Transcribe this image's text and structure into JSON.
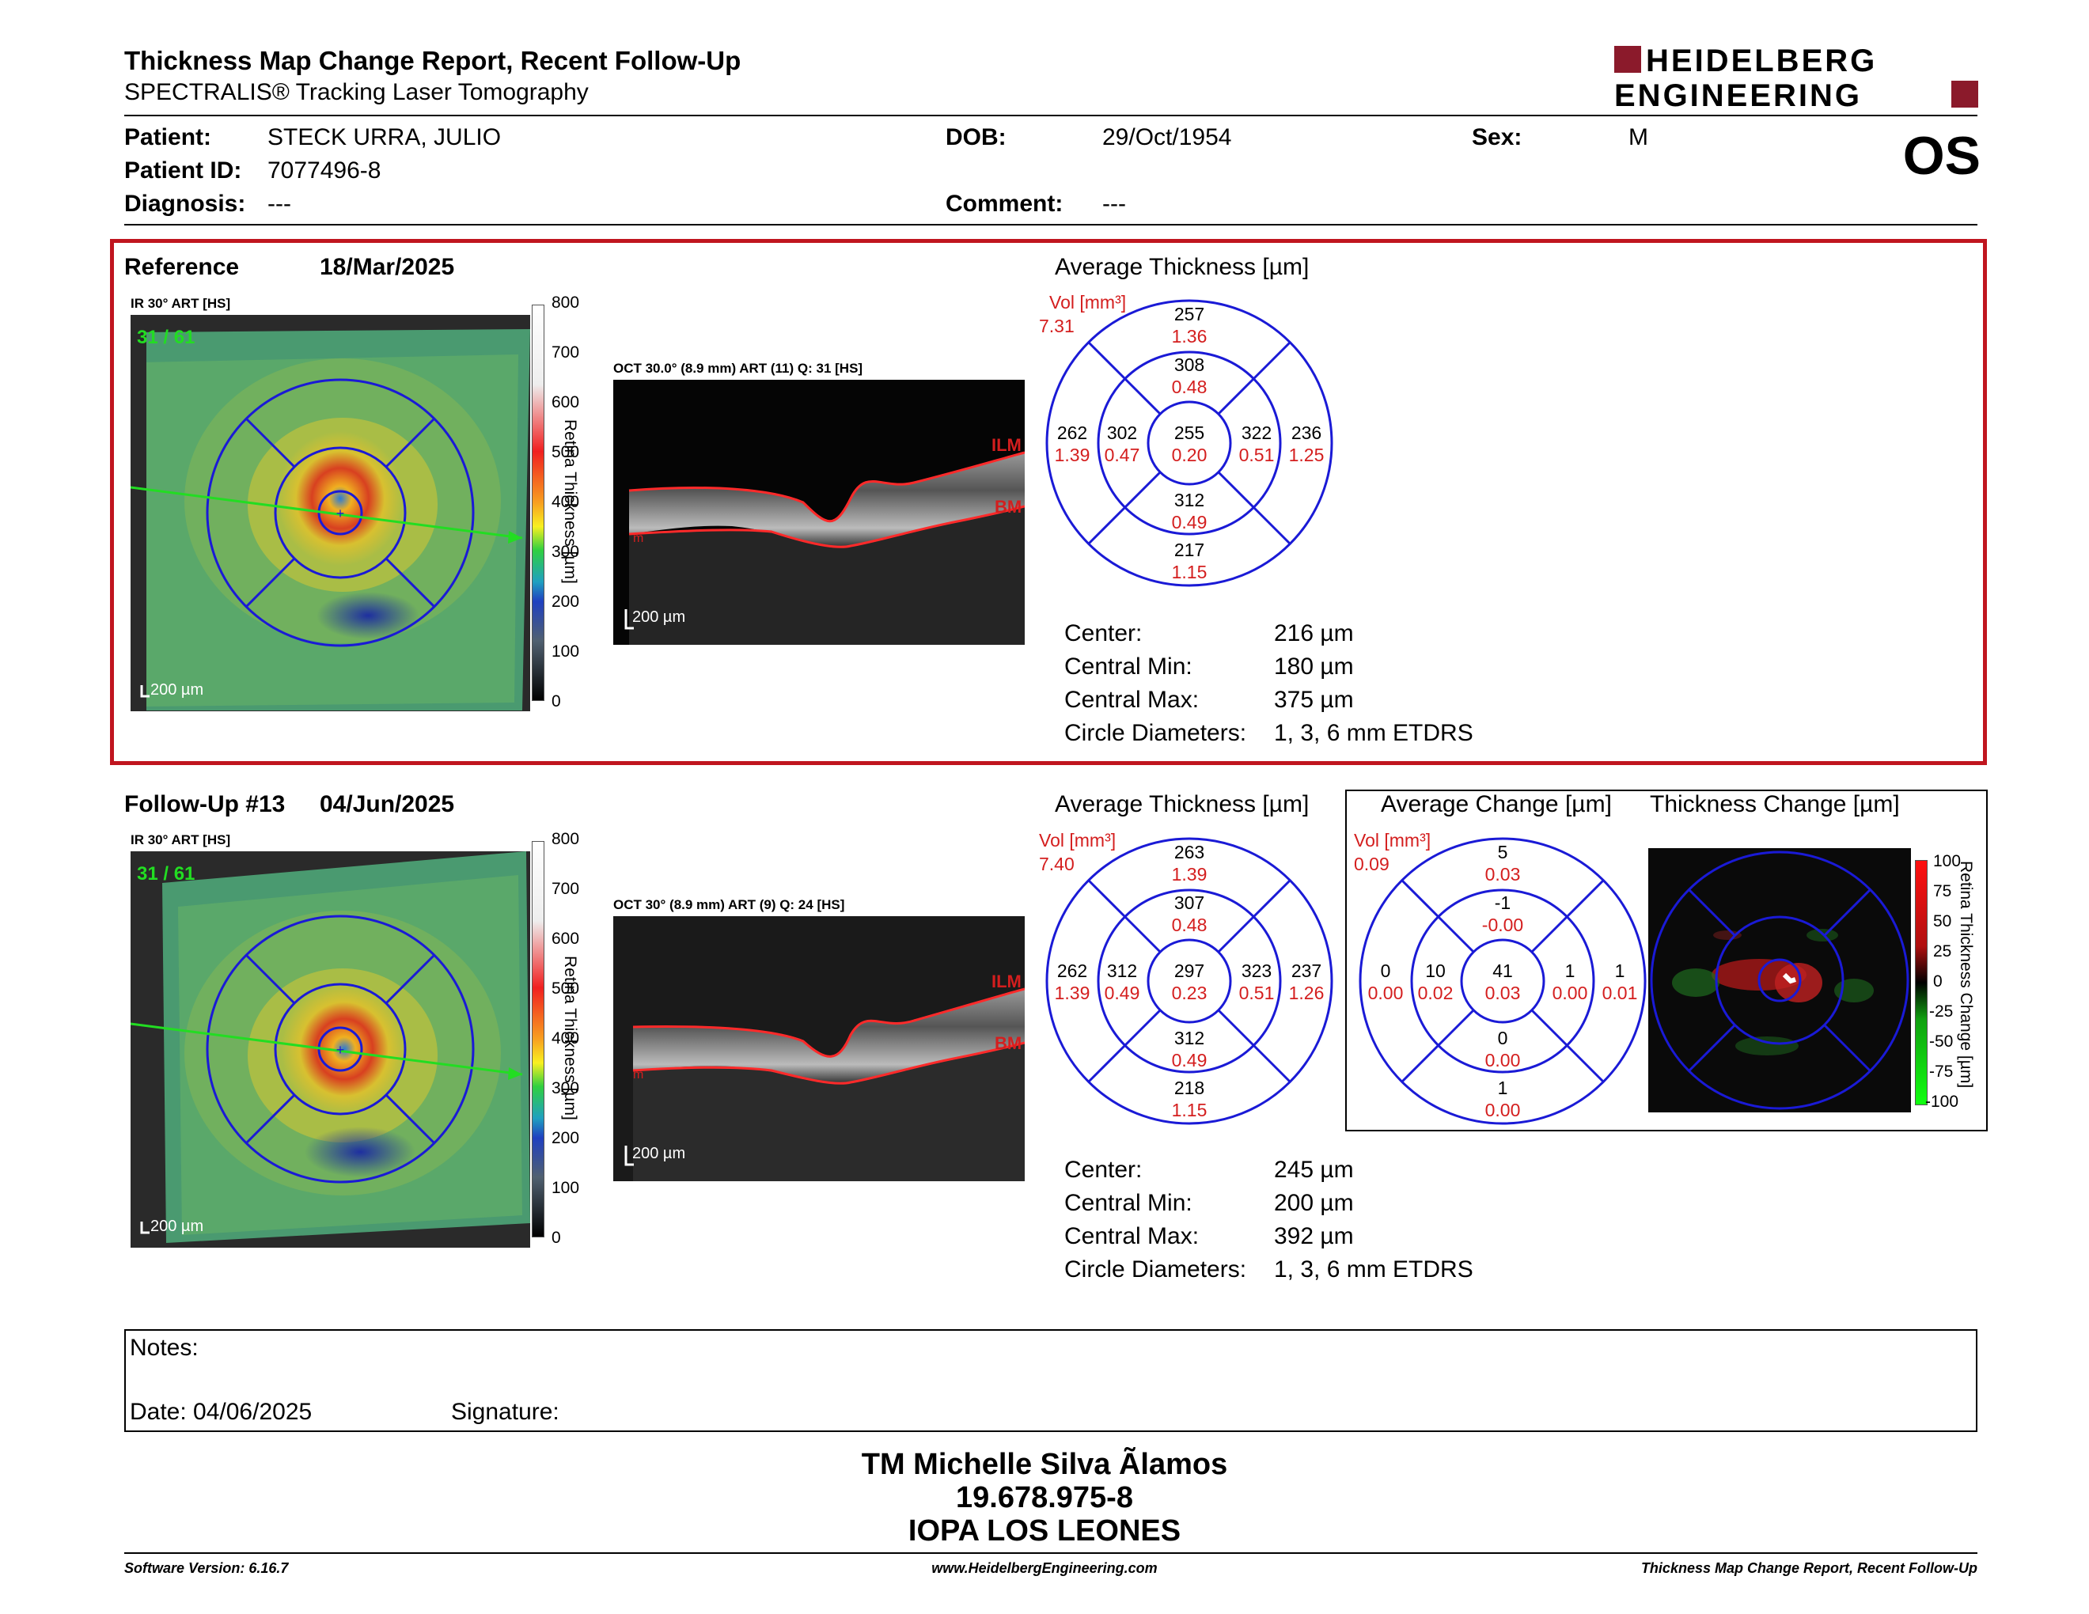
{
  "header": {
    "title": "Thickness Map Change Report, Recent Follow-Up",
    "subtitle": "SPECTRALIS® Tracking Laser Tomography",
    "logo_line1": "HEIDELBERG",
    "logo_line2": "ENGINEERING",
    "eye": "OS"
  },
  "patient": {
    "name_label": "Patient:",
    "name": "STECK URRA, JULIO",
    "id_label": "Patient ID:",
    "id": "7077496-8",
    "diagnosis_label": "Diagnosis:",
    "diagnosis": "---",
    "dob_label": "DOB:",
    "dob": "29/Oct/1954",
    "comment_label": "Comment:",
    "comment": "---",
    "sex_label": "Sex:",
    "sex": "M"
  },
  "colors": {
    "frame_red": "#c0151f",
    "value_red": "#d41e1e",
    "ring_blue": "#1a1ad6",
    "scan_green": "#22dd22"
  },
  "reference": {
    "label": "Reference",
    "date": "18/Mar/2025",
    "ir_label": "IR 30° ART [HS]",
    "frame_count": "31 / 61",
    "ir_scale": "200 µm",
    "colorbar_label": "Retina Thickness [µm]",
    "colorbar_ticks": [
      "800",
      "700",
      "600",
      "500",
      "400",
      "300",
      "200",
      "100",
      "0"
    ],
    "oct_label": "OCT 30.0° (8.9 mm) ART (11) Q: 31 [HS]",
    "oct_scale": "200 µm",
    "ilm": "ILM",
    "bm": "BM",
    "avg_title": "Average Thickness [µm]",
    "vol_label": "Vol [mm³]",
    "vol": "7.31",
    "grid": {
      "outer_top": [
        "257",
        "1.36"
      ],
      "inner_top": [
        "308",
        "0.48"
      ],
      "outer_left": [
        "262",
        "1.39"
      ],
      "inner_left": [
        "302",
        "0.47"
      ],
      "center": [
        "255",
        "0.20"
      ],
      "inner_right": [
        "322",
        "0.51"
      ],
      "outer_right": [
        "236",
        "1.25"
      ],
      "inner_bottom": [
        "312",
        "0.49"
      ],
      "outer_bottom": [
        "217",
        "1.15"
      ]
    },
    "stats": {
      "center_label": "Center:",
      "center": "216 µm",
      "min_label": "Central Min:",
      "min": "180 µm",
      "max_label": "Central Max:",
      "max": "375 µm",
      "diam_label": "Circle Diameters:",
      "diam": "1, 3, 6 mm ETDRS"
    }
  },
  "followup": {
    "label": "Follow-Up #13",
    "date": "04/Jun/2025",
    "ir_label": "IR 30° ART [HS]",
    "frame_count": "31 / 61",
    "ir_scale": "200 µm",
    "colorbar_label": "Retina Thickness [µm]",
    "colorbar_ticks": [
      "800",
      "700",
      "600",
      "500",
      "400",
      "300",
      "200",
      "100",
      "0"
    ],
    "oct_label": "OCT 30° (8.9 mm) ART (9) Q: 24 [HS]",
    "oct_scale": "200 µm",
    "ilm": "ILM",
    "bm": "BM",
    "avg_title": "Average Thickness [µm]",
    "vol_label": "Vol [mm³]",
    "vol": "7.40",
    "grid": {
      "outer_top": [
        "263",
        "1.39"
      ],
      "inner_top": [
        "307",
        "0.48"
      ],
      "outer_left": [
        "262",
        "1.39"
      ],
      "inner_left": [
        "312",
        "0.49"
      ],
      "center": [
        "297",
        "0.23"
      ],
      "inner_right": [
        "323",
        "0.51"
      ],
      "outer_right": [
        "237",
        "1.26"
      ],
      "inner_bottom": [
        "312",
        "0.49"
      ],
      "outer_bottom": [
        "218",
        "1.15"
      ]
    },
    "stats": {
      "center_label": "Center:",
      "center": "245 µm",
      "min_label": "Central Min:",
      "min": "200 µm",
      "max_label": "Central Max:",
      "max": "392 µm",
      "diam_label": "Circle Diameters:",
      "diam": "1, 3, 6 mm ETDRS"
    }
  },
  "change": {
    "avg_title": "Average Change [µm]",
    "map_title": "Thickness Change [µm]",
    "vol_label": "Vol [mm³]",
    "vol": "0.09",
    "grid": {
      "outer_top": [
        "5",
        "0.03"
      ],
      "inner_top": [
        "-1",
        "-0.00"
      ],
      "outer_left": [
        "0",
        "0.00"
      ],
      "inner_left": [
        "10",
        "0.02"
      ],
      "center": [
        "41",
        "0.03"
      ],
      "inner_right": [
        "1",
        "0.00"
      ],
      "outer_right": [
        "1",
        "0.01"
      ],
      "inner_bottom": [
        "0",
        "0.00"
      ],
      "outer_bottom": [
        "1",
        "0.00"
      ]
    },
    "colorbar_label": "Retina Thickness Change [µm]",
    "colorbar_ticks": [
      "100",
      "75",
      "50",
      "25",
      "0",
      "-25",
      "-50",
      "-75",
      "-100"
    ]
  },
  "notes": {
    "label": "Notes:",
    "date": "Date: 04/06/2025",
    "signature": "Signature:"
  },
  "signoff": {
    "name": "TM Michelle Silva Ãlamos",
    "id": "19.678.975-8",
    "clinic": "IOPA LOS LEONES"
  },
  "footer": {
    "version": "Software Version: 6.16.7",
    "site": "www.HeidelbergEngineering.com",
    "report": "Thickness Map Change Report, Recent Follow-Up"
  }
}
